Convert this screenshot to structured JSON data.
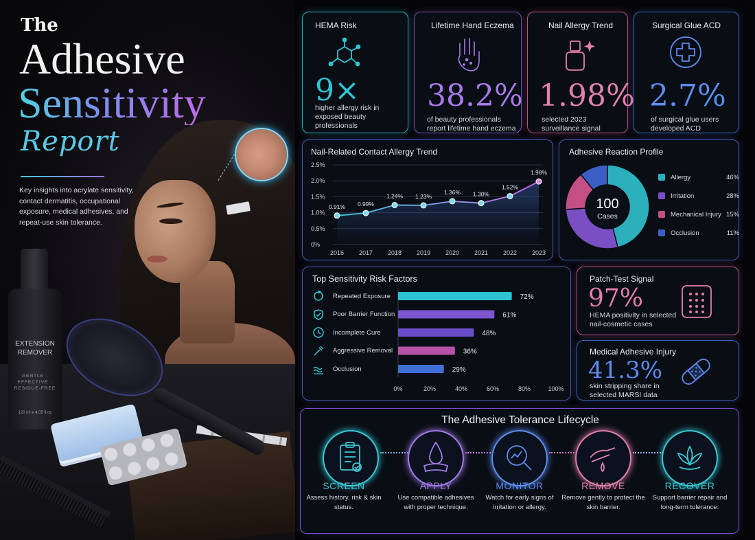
{
  "hero": {
    "title_the": "The",
    "title_adhesive": "Adhesive",
    "title_sensitivity": "Sensitivity",
    "title_report": "Report",
    "description": "Key insights into acrylate sensitivity, contact dermatitis, occupational exposure, medical adhesives, and repeat-use skin tolerance.",
    "bottle_name": "EXTENSION REMOVER",
    "bottle_tagline": "GENTLE · EFFECTIVE · RESIDUE-FREE",
    "bottle_volume": "120 ml e 4.05 fl.oz"
  },
  "kpis": [
    {
      "title": "HEMA Risk",
      "value": "9×",
      "desc": "higher allergy risk in exposed beauty professionals",
      "color": "#2cc6d6",
      "icon": "molecule-icon"
    },
    {
      "title": "Lifetime Hand Eczema",
      "value": "38.2%",
      "desc": "of beauty professionals report lifetime hand eczema",
      "color": "#a97ae8",
      "icon": "hand-icon"
    },
    {
      "title": "Nail Allergy Trend",
      "value": "1.98%",
      "desc": "selected 2023 surveillance signal",
      "color": "#e27fb0",
      "icon": "nail-polish-icon"
    },
    {
      "title": "Surgical Glue ACD",
      "value": "2.7%",
      "desc": "of surgical glue users developed ACD",
      "color": "#5a8ef0",
      "icon": "medical-cross-icon"
    }
  ],
  "trend_chart": {
    "chart_data": {
      "type": "line",
      "title": "Nail-Related Contact Allergy Trend",
      "categories": [
        "2016",
        "2017",
        "2018",
        "2019",
        "2020",
        "2021",
        "2022",
        "2023"
      ],
      "values": [
        0.91,
        0.99,
        1.24,
        1.23,
        1.36,
        1.3,
        1.52,
        1.98
      ],
      "data_labels": [
        "0.91%",
        "0.99%",
        "1.24%",
        "1.23%",
        "1.36%",
        "1.30%",
        "1.52%",
        "1.98%"
      ],
      "y_ticks": [
        "0%",
        "0.5%",
        "1.0%",
        "1.5%",
        "2.0%",
        "2.5%"
      ],
      "ylim": [
        0,
        2.5
      ],
      "grid": true
    }
  },
  "profile_chart": {
    "chart_data": {
      "type": "pie",
      "title": "Adhesive Reaction Profile",
      "center_value": "100",
      "center_label": "Cases",
      "categories": [
        "Allergy",
        "Irritation",
        "Mechanical Injury",
        "Occlusion"
      ],
      "values": [
        46,
        28,
        15,
        11
      ],
      "value_labels": [
        "46%",
        "28%",
        "15%",
        "11%"
      ],
      "colors": [
        "#2bb0bc",
        "#7a4fc4",
        "#c34f86",
        "#3b5fc4"
      ],
      "legend": "right"
    }
  },
  "risk_chart": {
    "chart_data": {
      "type": "bar",
      "title": "Top Sensitivity Risk Factors",
      "categories": [
        "Repeated Exposure",
        "Poor Barrier Function",
        "Incomplete Cure",
        "Aggressive Removal",
        "Occlusion"
      ],
      "values": [
        72,
        61,
        48,
        36,
        29
      ],
      "value_labels": [
        "72%",
        "61%",
        "48%",
        "36%",
        "29%"
      ],
      "x_ticks": [
        "0%",
        "20%",
        "40%",
        "60%",
        "80%",
        "100%"
      ],
      "xlim": [
        0,
        100
      ],
      "colors": [
        "#2ec3d2",
        "#7d55d0",
        "#6a4cc8",
        "#b552a8",
        "#3f6fd6"
      ]
    },
    "icons": [
      "cycle-icon",
      "shield-icon",
      "clock-icon",
      "tool-icon",
      "waves-icon"
    ]
  },
  "patch": {
    "title": "Patch-Test Signal",
    "value": "97%",
    "desc": "HEMA positivity in selected nail-cosmetic cases",
    "color": "#e57eb2"
  },
  "marsi": {
    "title": "Medical Adhesive Injury",
    "value": "41.3%",
    "desc": "skin stripping share in selected MARSI data",
    "color": "#5d8df0"
  },
  "lifecycle": {
    "title": "The Adhesive Tolerance Lifecycle",
    "steps": [
      {
        "name": "SCREEN",
        "desc": "Assess history, risk & skin status.",
        "color": "#38c8d4",
        "icon": "clipboard-icon"
      },
      {
        "name": "APPLY",
        "desc": "Use compatible adhesives with proper technique.",
        "color": "#a37be8",
        "icon": "droplet-icon"
      },
      {
        "name": "MONITOR",
        "desc": "Watch for early signs of irritation or allergy.",
        "color": "#5d8df0",
        "icon": "magnifier-icon"
      },
      {
        "name": "REMOVE",
        "desc": "Remove gently to protect the skin barrier.",
        "color": "#e07eae",
        "icon": "gentle-hand-icon"
      },
      {
        "name": "RECOVER",
        "desc": "Support barrier repair and long-term tolerance.",
        "color": "#38c8d4",
        "icon": "lotus-icon"
      }
    ]
  }
}
